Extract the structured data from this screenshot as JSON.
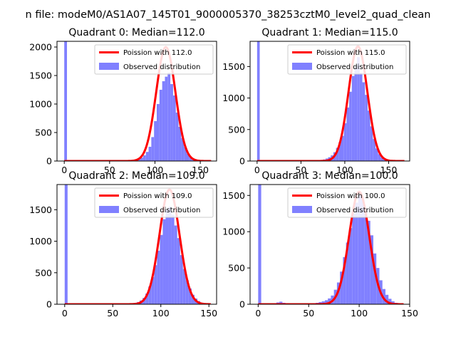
{
  "figure": {
    "suptitle": "n file: modeM0/AS1A07_145T01_9000005370_38253cztM0_level2_quad_clean"
  },
  "chart_data": [
    {
      "type": "bar",
      "title": "Quadrant 0: Median=112.0",
      "xlabel": "",
      "ylabel": "",
      "xlim": [
        -8,
        168
      ],
      "ylim": [
        0,
        2100
      ],
      "xticks": [
        0,
        50,
        100,
        150
      ],
      "yticks": [
        0,
        500,
        1000,
        1500,
        2000
      ],
      "legend_position": "top-right",
      "series": [
        {
          "name": "Poission with 112.0",
          "kind": "line",
          "color": "#ff0000",
          "mu": 112.0,
          "peak": 2000
        },
        {
          "name": "Observed distribution",
          "kind": "histogram",
          "color": "#8080ff",
          "bin_width": 3.0,
          "bins": [
            [
              0,
              2100
            ],
            [
              60,
              3
            ],
            [
              63,
              3
            ],
            [
              66,
              5
            ],
            [
              69,
              8
            ],
            [
              72,
              10
            ],
            [
              75,
              15
            ],
            [
              78,
              25
            ],
            [
              81,
              40
            ],
            [
              84,
              60
            ],
            [
              87,
              100
            ],
            [
              90,
              160
            ],
            [
              93,
              250
            ],
            [
              96,
              420
            ],
            [
              99,
              700
            ],
            [
              102,
              1000
            ],
            [
              105,
              1250
            ],
            [
              108,
              1400
            ],
            [
              111,
              1480
            ],
            [
              114,
              1550
            ],
            [
              117,
              1350
            ],
            [
              120,
              1150
            ],
            [
              123,
              850
            ],
            [
              126,
              600
            ],
            [
              129,
              400
            ],
            [
              132,
              250
            ],
            [
              135,
              130
            ],
            [
              138,
              70
            ],
            [
              141,
              35
            ],
            [
              144,
              18
            ],
            [
              147,
              8
            ],
            [
              150,
              4
            ],
            [
              153,
              2
            ]
          ]
        }
      ]
    },
    {
      "type": "bar",
      "title": "Quadrant 1: Median=115.0",
      "xlabel": "",
      "ylabel": "",
      "xlim": [
        -8,
        174
      ],
      "ylim": [
        0,
        1900
      ],
      "xticks": [
        0,
        50,
        100,
        150
      ],
      "yticks": [
        0,
        500,
        1000,
        1500
      ],
      "legend_position": "top-right",
      "series": [
        {
          "name": "Poission with 115.0",
          "kind": "line",
          "color": "#ff0000",
          "mu": 115.0,
          "peak": 1820
        },
        {
          "name": "Observed distribution",
          "kind": "histogram",
          "color": "#8080ff",
          "bin_width": 3.0,
          "bins": [
            [
              0,
              1900
            ],
            [
              60,
              3
            ],
            [
              63,
              4
            ],
            [
              66,
              6
            ],
            [
              69,
              10
            ],
            [
              72,
              15
            ],
            [
              75,
              25
            ],
            [
              78,
              40
            ],
            [
              81,
              60
            ],
            [
              84,
              90
            ],
            [
              87,
              140
            ],
            [
              90,
              210
            ],
            [
              93,
              300
            ],
            [
              96,
              400
            ],
            [
              99,
              600
            ],
            [
              102,
              850
            ],
            [
              105,
              1100
            ],
            [
              108,
              1350
            ],
            [
              111,
              1500
            ],
            [
              114,
              1650
            ],
            [
              117,
              1400
            ],
            [
              120,
              1250
            ],
            [
              123,
              1050
            ],
            [
              126,
              800
            ],
            [
              129,
              550
            ],
            [
              132,
              350
            ],
            [
              135,
              200
            ],
            [
              138,
              110
            ],
            [
              141,
              55
            ],
            [
              144,
              25
            ],
            [
              147,
              12
            ],
            [
              150,
              5
            ],
            [
              153,
              2
            ]
          ]
        }
      ]
    },
    {
      "type": "bar",
      "title": "Quadrant 2: Median=109.0",
      "xlabel": "",
      "ylabel": "",
      "xlim": [
        -8,
        158
      ],
      "ylim": [
        0,
        1900
      ],
      "xticks": [
        0,
        50,
        100,
        150
      ],
      "yticks": [
        0,
        500,
        1000,
        1500
      ],
      "legend_position": "top-right",
      "series": [
        {
          "name": "Poission with 109.0",
          "kind": "line",
          "color": "#ff0000",
          "mu": 109.0,
          "peak": 1820
        },
        {
          "name": "Observed distribution",
          "kind": "histogram",
          "color": "#8080ff",
          "bin_width": 3.0,
          "bins": [
            [
              0,
              1900
            ],
            [
              57,
              2
            ],
            [
              60,
              3
            ],
            [
              63,
              5
            ],
            [
              66,
              8
            ],
            [
              69,
              12
            ],
            [
              72,
              20
            ],
            [
              75,
              35
            ],
            [
              78,
              60
            ],
            [
              81,
              100
            ],
            [
              84,
              170
            ],
            [
              87,
              280
            ],
            [
              90,
              430
            ],
            [
              93,
              620
            ],
            [
              96,
              850
            ],
            [
              99,
              1100
            ],
            [
              102,
              1350
            ],
            [
              105,
              1500
            ],
            [
              108,
              1550
            ],
            [
              111,
              1420
            ],
            [
              114,
              1250
            ],
            [
              117,
              1050
            ],
            [
              120,
              780
            ],
            [
              123,
              560
            ],
            [
              126,
              380
            ],
            [
              129,
              250
            ],
            [
              132,
              150
            ],
            [
              135,
              90
            ],
            [
              138,
              50
            ],
            [
              141,
              25
            ],
            [
              144,
              12
            ],
            [
              147,
              5
            ],
            [
              150,
              2
            ]
          ]
        }
      ]
    },
    {
      "type": "bar",
      "title": "Quadrant 3: Median=100.0",
      "xlabel": "",
      "ylabel": "",
      "xlim": [
        -8,
        150
      ],
      "ylim": [
        0,
        1650
      ],
      "xticks": [
        0,
        50,
        100,
        150
      ],
      "yticks": [
        0,
        500,
        1000,
        1500
      ],
      "legend_position": "top-right",
      "series": [
        {
          "name": "Poission with 100.0",
          "kind": "line",
          "color": "#ff0000",
          "mu": 100.0,
          "peak": 1550
        },
        {
          "name": "Observed distribution",
          "kind": "histogram",
          "color": "#8080ff",
          "bin_width": 3.0,
          "bins": [
            [
              0,
              1650
            ],
            [
              18,
              25
            ],
            [
              21,
              35
            ],
            [
              24,
              20
            ],
            [
              27,
              15
            ],
            [
              30,
              10
            ],
            [
              45,
              8
            ],
            [
              48,
              10
            ],
            [
              51,
              12
            ],
            [
              54,
              15
            ],
            [
              57,
              20
            ],
            [
              60,
              30
            ],
            [
              63,
              40
            ],
            [
              66,
              55
            ],
            [
              69,
              80
            ],
            [
              72,
              120
            ],
            [
              75,
              200
            ],
            [
              78,
              300
            ],
            [
              81,
              450
            ],
            [
              84,
              650
            ],
            [
              87,
              850
            ],
            [
              90,
              1050
            ],
            [
              93,
              1250
            ],
            [
              96,
              1400
            ],
            [
              99,
              1500
            ],
            [
              102,
              1450
            ],
            [
              105,
              1300
            ],
            [
              108,
              1150
            ],
            [
              111,
              950
            ],
            [
              114,
              700
            ],
            [
              117,
              500
            ],
            [
              120,
              330
            ],
            [
              123,
              210
            ],
            [
              126,
              130
            ],
            [
              129,
              75
            ],
            [
              132,
              40
            ],
            [
              135,
              20
            ],
            [
              138,
              10
            ],
            [
              141,
              4
            ]
          ]
        }
      ]
    }
  ]
}
